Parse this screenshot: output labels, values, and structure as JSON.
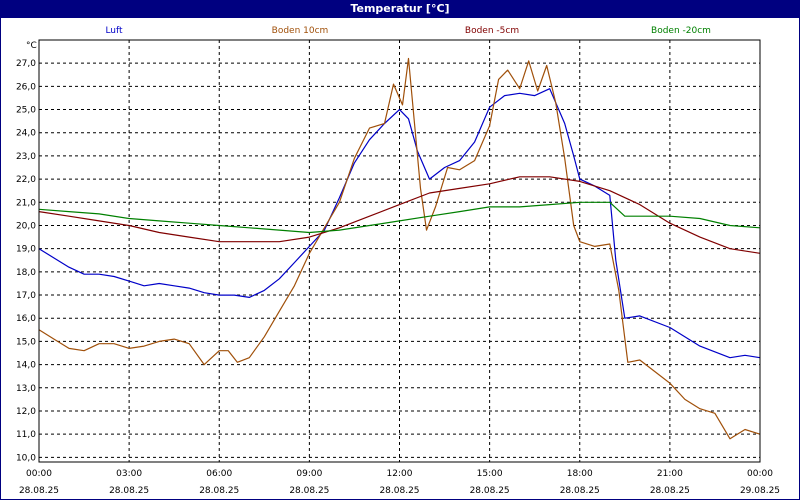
{
  "window": {
    "title": "Temperatur [°C]"
  },
  "chart_data": {
    "type": "line",
    "title": "Temperatur [°C]",
    "ylabel": "°C",
    "xlabel": "",
    "ylim": [
      9.8,
      28.0
    ],
    "yticks": [
      10.0,
      11.0,
      12.0,
      13.0,
      14.0,
      15.0,
      16.0,
      17.0,
      18.0,
      19.0,
      20.0,
      21.0,
      22.0,
      23.0,
      24.0,
      25.0,
      26.0,
      27.0
    ],
    "ytick_labels": [
      "10,0",
      "11,0",
      "12,0",
      "13,0",
      "14,0",
      "15,0",
      "16,0",
      "17,0",
      "18,0",
      "19,0",
      "20,0",
      "21,0",
      "22,0",
      "23,0",
      "24,0",
      "25,0",
      "26,0",
      "27,0"
    ],
    "xlim": [
      0,
      24
    ],
    "xticks": [
      {
        "x": 0,
        "time": "00:00",
        "date": "28.08.25"
      },
      {
        "x": 3,
        "time": "03:00",
        "date": "28.08.25"
      },
      {
        "x": 6,
        "time": "06:00",
        "date": "28.08.25"
      },
      {
        "x": 9,
        "time": "09:00",
        "date": "28.08.25"
      },
      {
        "x": 12,
        "time": "12:00",
        "date": "28.08.25"
      },
      {
        "x": 15,
        "time": "15:00",
        "date": "28.08.25"
      },
      {
        "x": 18,
        "time": "18:00",
        "date": "28.08.25"
      },
      {
        "x": 21,
        "time": "21:00",
        "date": "28.08.25"
      },
      {
        "x": 24,
        "time": "00:00",
        "date": "29.08.25"
      }
    ],
    "grid": true,
    "legend_position": "top",
    "series": [
      {
        "name": "Luft",
        "color": "#0000c8",
        "points": [
          [
            0,
            19.0
          ],
          [
            0.5,
            18.6
          ],
          [
            1,
            18.2
          ],
          [
            1.5,
            17.9
          ],
          [
            2,
            17.9
          ],
          [
            2.5,
            17.8
          ],
          [
            3,
            17.6
          ],
          [
            3.5,
            17.4
          ],
          [
            4,
            17.5
          ],
          [
            4.5,
            17.4
          ],
          [
            5,
            17.3
          ],
          [
            5.5,
            17.1
          ],
          [
            6,
            17.0
          ],
          [
            6.5,
            17.0
          ],
          [
            7,
            16.9
          ],
          [
            7.5,
            17.2
          ],
          [
            8,
            17.7
          ],
          [
            8.5,
            18.4
          ],
          [
            9,
            19.1
          ],
          [
            9.5,
            19.8
          ],
          [
            10,
            21.2
          ],
          [
            10.5,
            22.7
          ],
          [
            11,
            23.7
          ],
          [
            11.5,
            24.4
          ],
          [
            12,
            25.0
          ],
          [
            12.3,
            24.6
          ],
          [
            12.6,
            23.2
          ],
          [
            13,
            22.0
          ],
          [
            13.5,
            22.5
          ],
          [
            14,
            22.8
          ],
          [
            14.5,
            23.6
          ],
          [
            15,
            25.1
          ],
          [
            15.5,
            25.6
          ],
          [
            16,
            25.7
          ],
          [
            16.5,
            25.6
          ],
          [
            17,
            25.9
          ],
          [
            17.5,
            24.4
          ],
          [
            17.8,
            23.0
          ],
          [
            18,
            22.0
          ],
          [
            18.5,
            21.7
          ],
          [
            19,
            21.3
          ],
          [
            19.2,
            18.5
          ],
          [
            19.5,
            16.0
          ],
          [
            20,
            16.1
          ],
          [
            21,
            15.6
          ],
          [
            22,
            14.8
          ],
          [
            23,
            14.3
          ],
          [
            23.5,
            14.4
          ],
          [
            24,
            14.3
          ]
        ]
      },
      {
        "name": "Boden 10cm",
        "color": "#a0500a",
        "points": [
          [
            0,
            15.5
          ],
          [
            0.5,
            15.1
          ],
          [
            1,
            14.7
          ],
          [
            1.5,
            14.6
          ],
          [
            2,
            14.9
          ],
          [
            2.5,
            14.9
          ],
          [
            3,
            14.7
          ],
          [
            3.5,
            14.8
          ],
          [
            4,
            15.0
          ],
          [
            4.5,
            15.1
          ],
          [
            5,
            14.9
          ],
          [
            5.5,
            14.0
          ],
          [
            6,
            14.6
          ],
          [
            6.3,
            14.6
          ],
          [
            6.6,
            14.1
          ],
          [
            7,
            14.3
          ],
          [
            7.5,
            15.2
          ],
          [
            8,
            16.3
          ],
          [
            8.5,
            17.4
          ],
          [
            9,
            18.8
          ],
          [
            9.5,
            19.9
          ],
          [
            10,
            21.0
          ],
          [
            10.5,
            22.9
          ],
          [
            11,
            24.2
          ],
          [
            11.5,
            24.4
          ],
          [
            11.8,
            26.1
          ],
          [
            12.1,
            25.2
          ],
          [
            12.3,
            27.2
          ],
          [
            12.5,
            24.4
          ],
          [
            12.7,
            21.6
          ],
          [
            12.9,
            19.8
          ],
          [
            13.2,
            20.8
          ],
          [
            13.6,
            22.5
          ],
          [
            14,
            22.4
          ],
          [
            14.5,
            22.8
          ],
          [
            15,
            24.3
          ],
          [
            15.3,
            26.3
          ],
          [
            15.6,
            26.7
          ],
          [
            16,
            25.9
          ],
          [
            16.3,
            27.1
          ],
          [
            16.6,
            25.8
          ],
          [
            16.9,
            26.9
          ],
          [
            17.2,
            25.3
          ],
          [
            17.5,
            22.9
          ],
          [
            17.8,
            20.0
          ],
          [
            18,
            19.3
          ],
          [
            18.5,
            19.1
          ],
          [
            19,
            19.2
          ],
          [
            19.3,
            17.2
          ],
          [
            19.6,
            14.1
          ],
          [
            20,
            14.2
          ],
          [
            20.5,
            13.7
          ],
          [
            21,
            13.2
          ],
          [
            21.5,
            12.5
          ],
          [
            22,
            12.1
          ],
          [
            22.5,
            11.9
          ],
          [
            23,
            10.8
          ],
          [
            23.5,
            11.2
          ],
          [
            24,
            11.0
          ]
        ]
      },
      {
        "name": "Boden -5cm",
        "color": "#800000",
        "points": [
          [
            0,
            20.6
          ],
          [
            1,
            20.4
          ],
          [
            2,
            20.2
          ],
          [
            3,
            20.0
          ],
          [
            4,
            19.7
          ],
          [
            5,
            19.5
          ],
          [
            6,
            19.3
          ],
          [
            7,
            19.3
          ],
          [
            8,
            19.3
          ],
          [
            9,
            19.5
          ],
          [
            10,
            19.9
          ],
          [
            11,
            20.4
          ],
          [
            12,
            20.9
          ],
          [
            13,
            21.4
          ],
          [
            14,
            21.6
          ],
          [
            15,
            21.8
          ],
          [
            16,
            22.1
          ],
          [
            17,
            22.1
          ],
          [
            18,
            21.9
          ],
          [
            19,
            21.5
          ],
          [
            20,
            20.9
          ],
          [
            21,
            20.1
          ],
          [
            22,
            19.5
          ],
          [
            23,
            19.0
          ],
          [
            24,
            18.8
          ]
        ]
      },
      {
        "name": "Boden -20cm",
        "color": "#008000",
        "points": [
          [
            0,
            20.7
          ],
          [
            1,
            20.6
          ],
          [
            2,
            20.5
          ],
          [
            3,
            20.3
          ],
          [
            4,
            20.2
          ],
          [
            5,
            20.1
          ],
          [
            6,
            20.0
          ],
          [
            7,
            19.9
          ],
          [
            8,
            19.8
          ],
          [
            9,
            19.7
          ],
          [
            10,
            19.8
          ],
          [
            11,
            20.0
          ],
          [
            12,
            20.2
          ],
          [
            13,
            20.4
          ],
          [
            14,
            20.6
          ],
          [
            15,
            20.8
          ],
          [
            16,
            20.8
          ],
          [
            17,
            20.9
          ],
          [
            18,
            21.0
          ],
          [
            19,
            21.0
          ],
          [
            19.5,
            20.4
          ],
          [
            20,
            20.4
          ],
          [
            21,
            20.4
          ],
          [
            22,
            20.3
          ],
          [
            23,
            20.0
          ],
          [
            24,
            19.9
          ]
        ]
      }
    ]
  }
}
